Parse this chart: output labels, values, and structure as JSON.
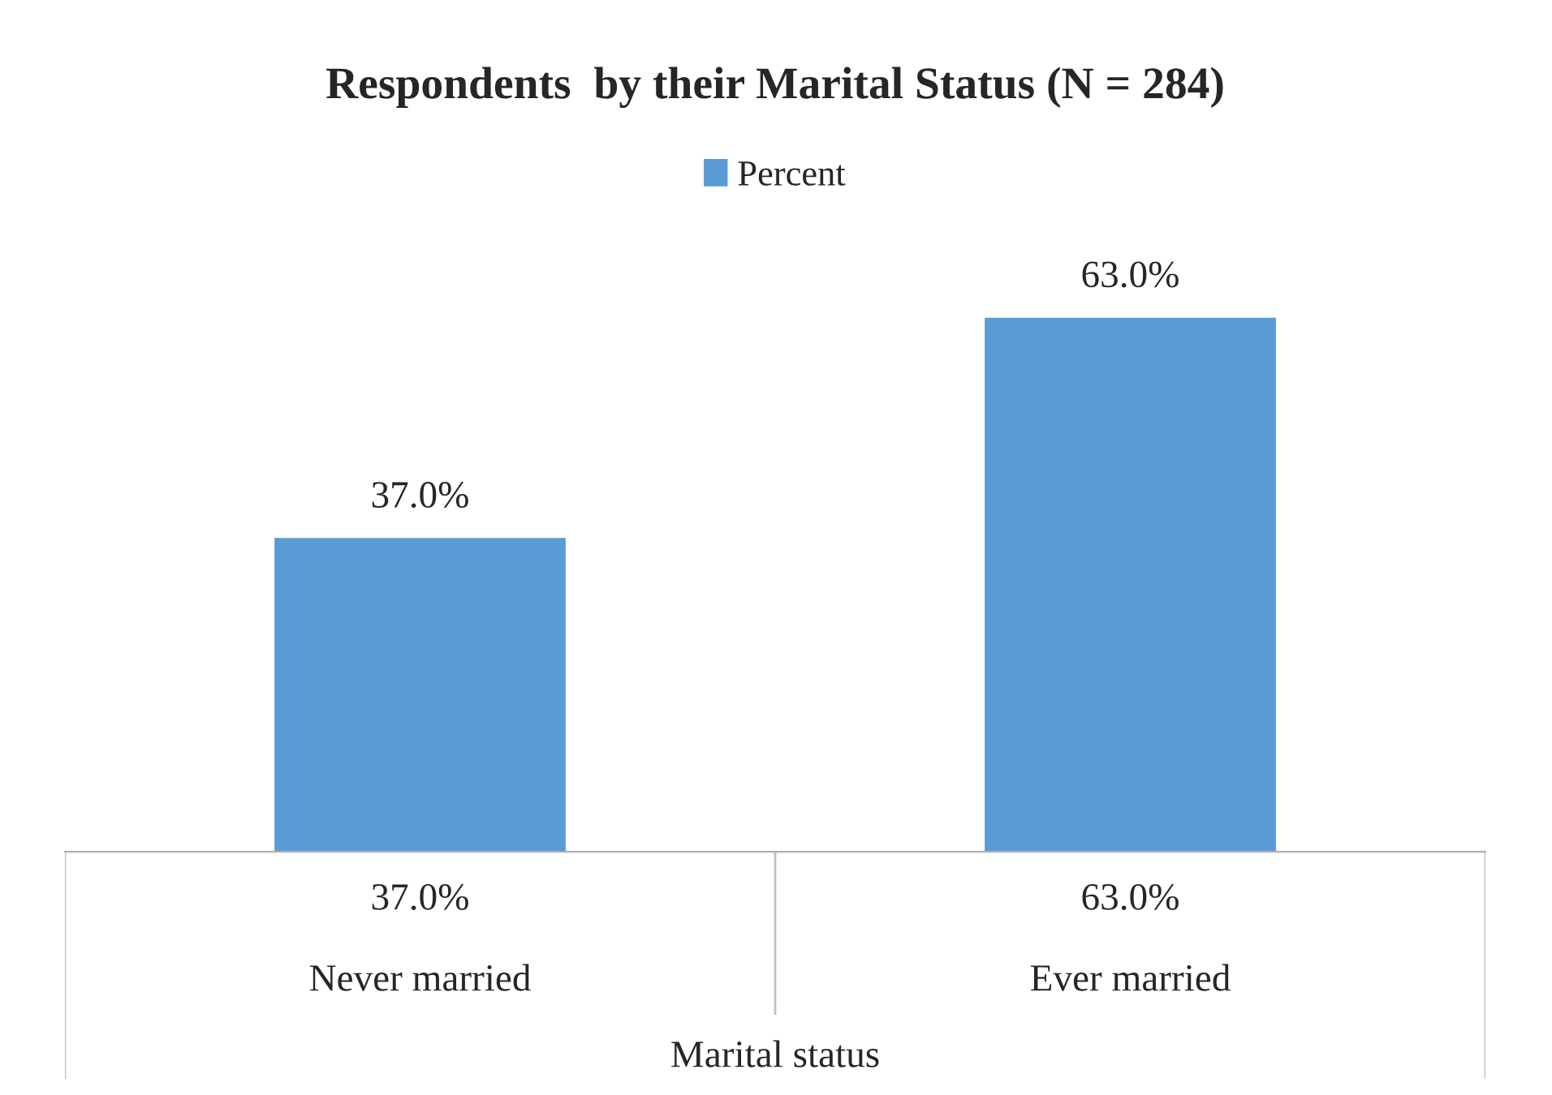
{
  "chart_data": {
    "type": "bar",
    "title": "Respondents  by their Marital Status (N = 284)",
    "xlabel": "Marital status",
    "categories": [
      "Never married",
      "Ever married"
    ],
    "series": [
      {
        "name": "Percent",
        "color": "#5b9bd5",
        "values": [
          37.0,
          63.0
        ],
        "value_labels": [
          "37.0%",
          "63.0%"
        ]
      }
    ],
    "legend": "top"
  }
}
